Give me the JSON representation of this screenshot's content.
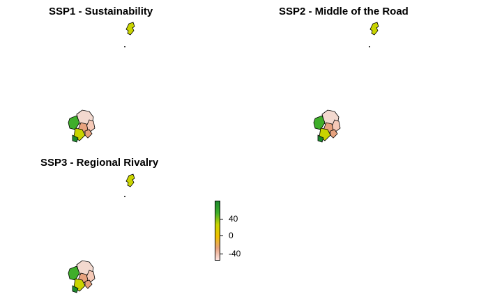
{
  "panels": [
    {
      "title": "SSP1 - Sustainability"
    },
    {
      "title": "SSP2 - Middle of the Road"
    },
    {
      "title": "SSP3 - Regional Rivalry"
    }
  ],
  "legend": {
    "ticks": [
      {
        "label": "40",
        "value": 40
      },
      {
        "label": "0",
        "value": 0
      },
      {
        "label": "-40",
        "value": -40
      }
    ],
    "colors": [
      "#ffe4e1",
      "#e7a27e",
      "#f0c000",
      "#c9d400",
      "#3fae2a",
      "#1e8a2e"
    ]
  }
}
